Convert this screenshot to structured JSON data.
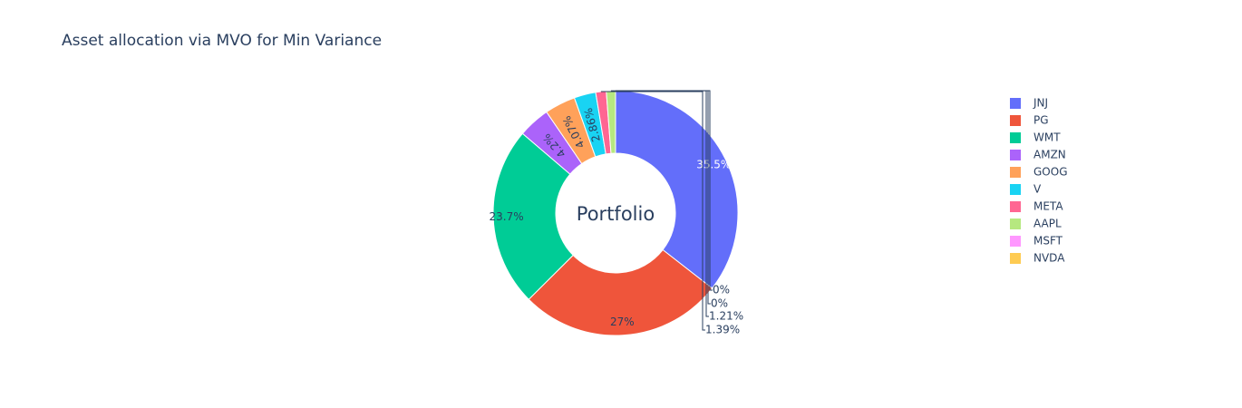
{
  "chart_data": {
    "type": "pie",
    "title": "Asset allocation via MVO for Min Variance",
    "center_label": "Portfolio",
    "hole": true,
    "legend_position": "right",
    "categories": [
      "JNJ",
      "PG",
      "WMT",
      "AMZN",
      "GOOG",
      "V",
      "META",
      "AAPL",
      "MSFT",
      "NVDA"
    ],
    "values": [
      35.5,
      27,
      23.7,
      4.2,
      4.07,
      2.86,
      1.39,
      1.21,
      0,
      0
    ],
    "labels": [
      "35.5%",
      "27%",
      "23.7%",
      "4.2%",
      "4.07%",
      "2.86%",
      "1.39%",
      "1.21%",
      "0%",
      "0%"
    ],
    "colors": [
      "#636efa",
      "#EF553B",
      "#00cc96",
      "#ab63fa",
      "#FFA15A",
      "#19d3f3",
      "#FF6692",
      "#B6E880",
      "#FF97FF",
      "#FECB52"
    ]
  }
}
